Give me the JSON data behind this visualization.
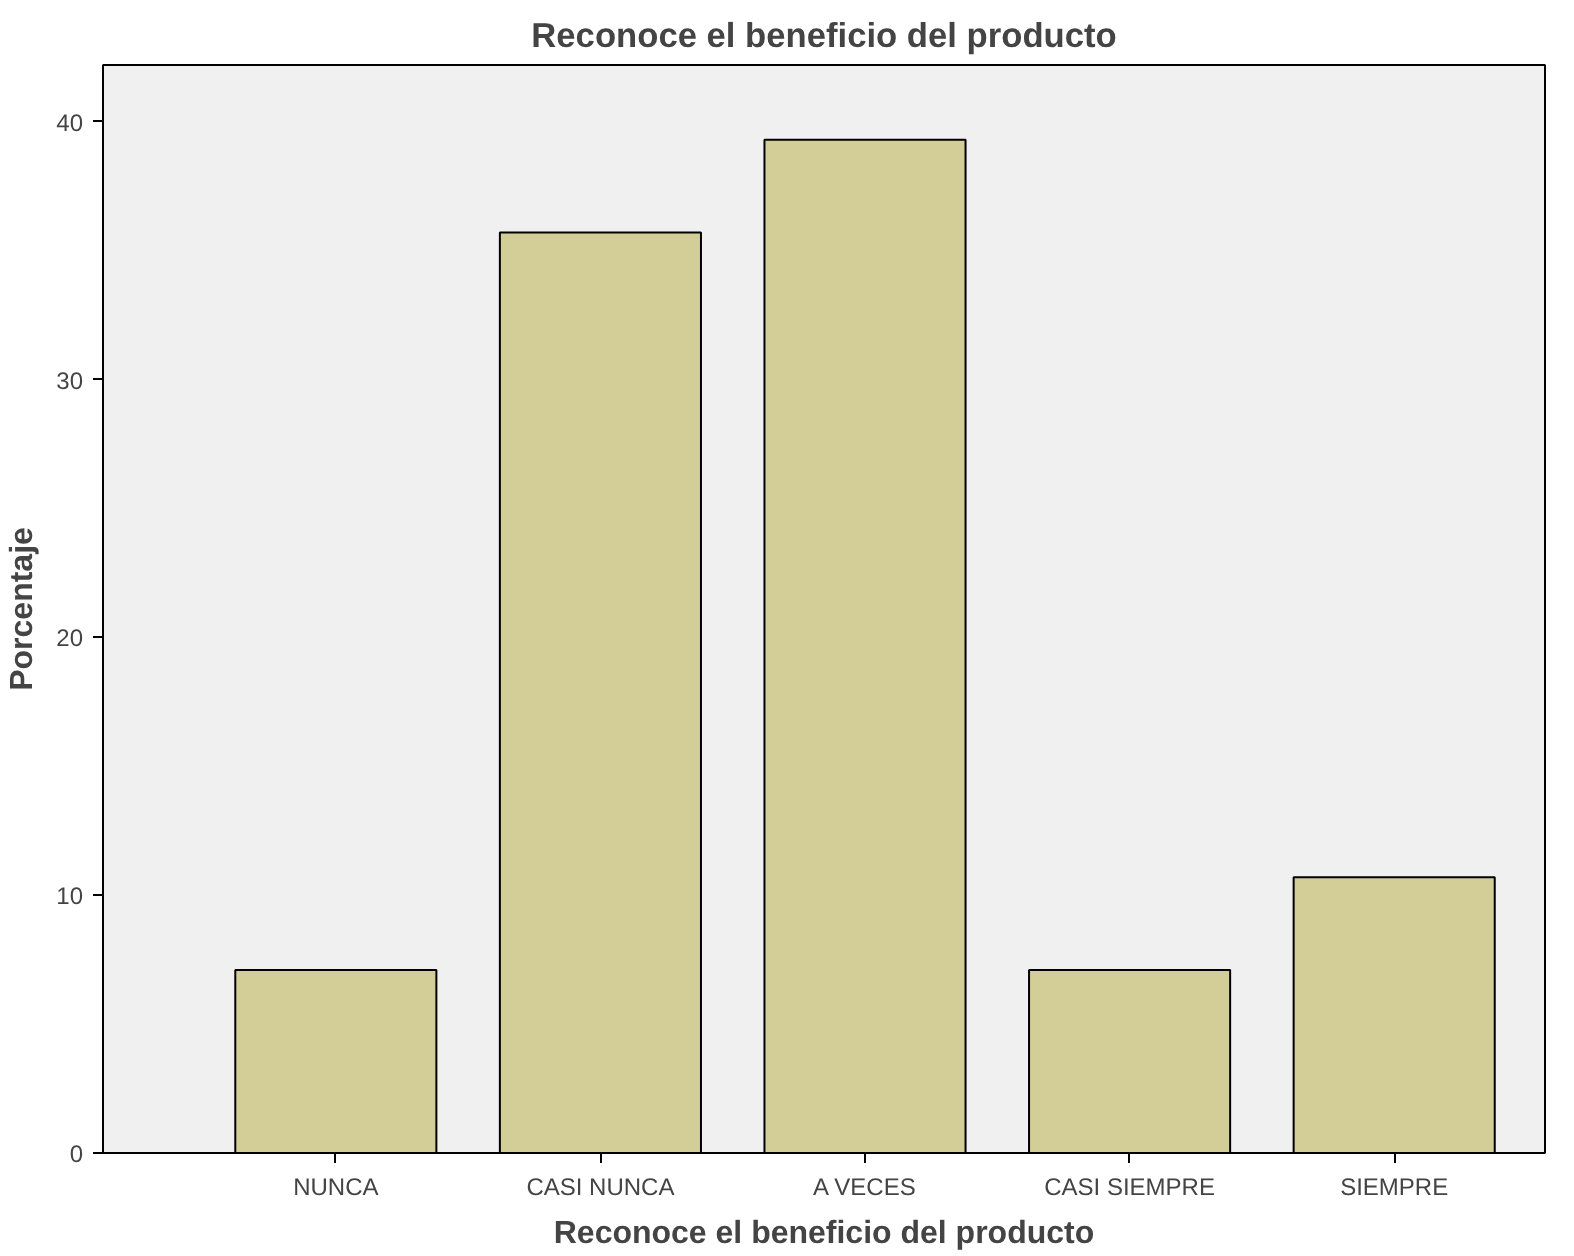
{
  "chart_data": {
    "type": "bar",
    "title": "Reconoce el beneficio del producto",
    "xlabel": "Reconoce el beneficio del producto",
    "ylabel": "Porcentaje",
    "categories": [
      "NUNCA",
      "CASI NUNCA",
      "A VECES",
      "CASI SIEMPRE",
      "SIEMPRE"
    ],
    "values": [
      7.1,
      35.7,
      39.3,
      7.1,
      10.7
    ],
    "color": "#d3ce97",
    "ylim": [
      0,
      42.2
    ],
    "yticks": [
      0,
      10,
      20,
      30,
      40
    ],
    "grid": false
  }
}
